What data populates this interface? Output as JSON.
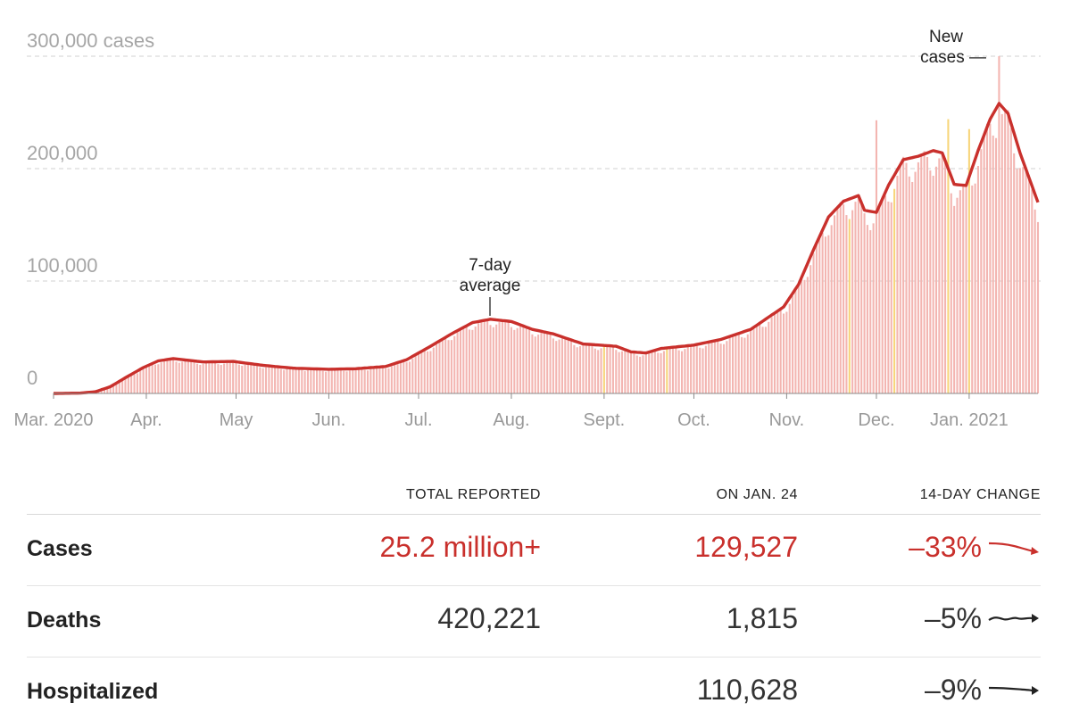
{
  "chart_data": {
    "type": "bar",
    "title": "",
    "xlabel": "",
    "ylabel": "",
    "y_tick_labels": [
      "300,000 cases",
      "200,000",
      "100,000",
      "0"
    ],
    "y_ticks": [
      300000,
      200000,
      100000,
      0
    ],
    "ylim": [
      0,
      300000
    ],
    "x_tick_labels": [
      "Mar. 2020",
      "Apr.",
      "May",
      "Jun.",
      "Jul.",
      "Aug.",
      "Sept.",
      "Oct.",
      "Nov.",
      "Dec.",
      "Jan. 2021"
    ],
    "x_range": [
      "2020-03-01",
      "2021-01-24"
    ],
    "grid": "horizontal dashed",
    "series": [
      {
        "name": "New cases",
        "kind": "daily bars",
        "color": "#f3b5b1",
        "highlight_color": "#f7d57a",
        "annotation": "New\ncases —"
      },
      {
        "name": "7-day average",
        "kind": "line",
        "color": "#c9302c",
        "annotation": "7-day\naverage",
        "points": [
          [
            "2020-03-01",
            0
          ],
          [
            "2020-03-10",
            300
          ],
          [
            "2020-03-15",
            1500
          ],
          [
            "2020-03-20",
            6000
          ],
          [
            "2020-03-25",
            14000
          ],
          [
            "2020-03-31",
            23000
          ],
          [
            "2020-04-05",
            29000
          ],
          [
            "2020-04-10",
            31000
          ],
          [
            "2020-04-20",
            28000
          ],
          [
            "2020-04-30",
            28500
          ],
          [
            "2020-05-10",
            25000
          ],
          [
            "2020-05-20",
            22500
          ],
          [
            "2020-06-01",
            21500
          ],
          [
            "2020-06-10",
            22000
          ],
          [
            "2020-06-20",
            24000
          ],
          [
            "2020-06-27",
            30000
          ],
          [
            "2020-07-05",
            42000
          ],
          [
            "2020-07-12",
            53000
          ],
          [
            "2020-07-19",
            63000
          ],
          [
            "2020-07-25",
            66000
          ],
          [
            "2020-08-01",
            64000
          ],
          [
            "2020-08-08",
            57000
          ],
          [
            "2020-08-15",
            53000
          ],
          [
            "2020-08-25",
            44000
          ],
          [
            "2020-09-05",
            42000
          ],
          [
            "2020-09-10",
            37000
          ],
          [
            "2020-09-15",
            36000
          ],
          [
            "2020-09-20",
            40000
          ],
          [
            "2020-10-01",
            43000
          ],
          [
            "2020-10-10",
            48000
          ],
          [
            "2020-10-20",
            57000
          ],
          [
            "2020-10-31",
            77000
          ],
          [
            "2020-11-05",
            97000
          ],
          [
            "2020-11-10",
            128000
          ],
          [
            "2020-11-15",
            157000
          ],
          [
            "2020-11-20",
            171000
          ],
          [
            "2020-11-25",
            176000
          ],
          [
            "2020-11-27",
            163000
          ],
          [
            "2020-12-01",
            161000
          ],
          [
            "2020-12-05",
            185000
          ],
          [
            "2020-12-10",
            208000
          ],
          [
            "2020-12-15",
            211000
          ],
          [
            "2020-12-20",
            216000
          ],
          [
            "2020-12-23",
            214000
          ],
          [
            "2020-12-27",
            186000
          ],
          [
            "2020-12-31",
            185000
          ],
          [
            "2021-01-04",
            216000
          ],
          [
            "2021-01-08",
            244000
          ],
          [
            "2021-01-11",
            258000
          ],
          [
            "2021-01-14",
            249000
          ],
          [
            "2021-01-18",
            214000
          ],
          [
            "2021-01-24",
            170000
          ]
        ]
      }
    ]
  },
  "stats": {
    "headers": {
      "total": "TOTAL REPORTED",
      "on_date": "ON JAN. 24",
      "change": "14-DAY CHANGE"
    },
    "rows": [
      {
        "label": "Cases",
        "total": "25.2 million+",
        "on_date": "129,527",
        "change": "–33%",
        "color": "#c9302c",
        "trend": "down"
      },
      {
        "label": "Deaths",
        "total": "420,221",
        "on_date": "1,815",
        "change": "–5%",
        "color": "#222222",
        "trend": "flat"
      },
      {
        "label": "Hospitalized",
        "total": "",
        "on_date": "110,628",
        "change": "–9%",
        "color": "#222222",
        "trend": "flat"
      }
    ]
  }
}
